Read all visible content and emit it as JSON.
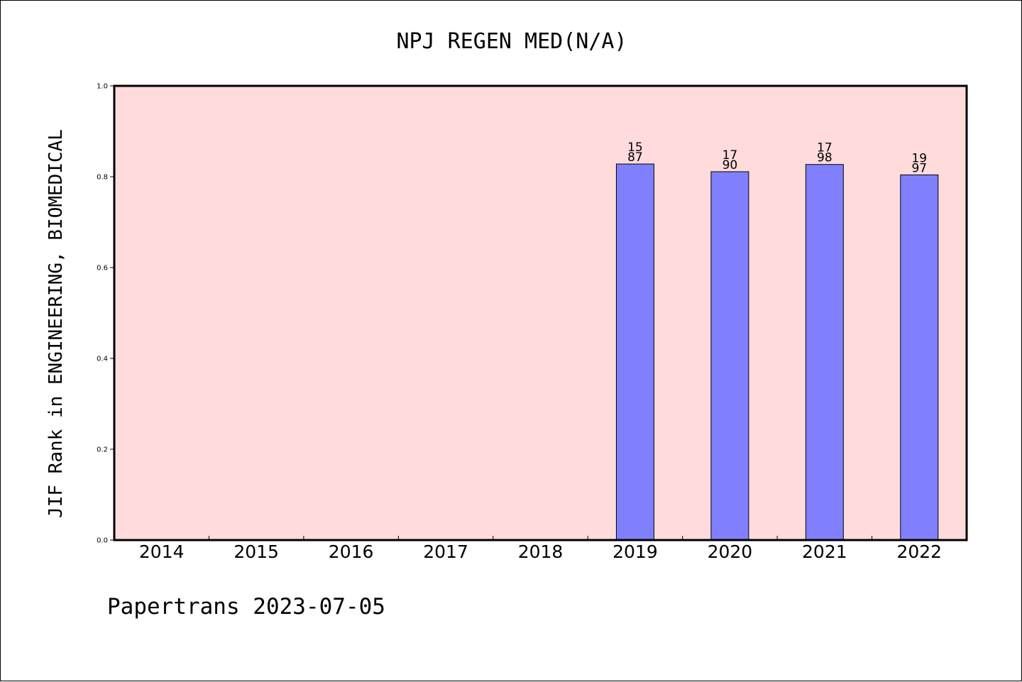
{
  "chart_data": {
    "type": "bar",
    "title": "NPJ REGEN MED(N/A)",
    "xlabel": "",
    "ylabel": "JIF Rank in ENGINEERING, BIOMEDICAL",
    "categories": [
      "2014",
      "2015",
      "2016",
      "2017",
      "2018",
      "2019",
      "2020",
      "2021",
      "2022"
    ],
    "values": [
      null,
      null,
      null,
      null,
      null,
      0.828,
      0.811,
      0.827,
      0.804
    ],
    "rank_labels": [
      null,
      null,
      null,
      null,
      null,
      {
        "rank": "15",
        "total": "87"
      },
      {
        "rank": "17",
        "total": "90"
      },
      {
        "rank": "17",
        "total": "98"
      },
      {
        "rank": "19",
        "total": "97"
      }
    ],
    "ylim": [
      0,
      1
    ],
    "yticks": [
      "0.0",
      "0.2",
      "0.4",
      "0.6",
      "0.8",
      "1.0"
    ],
    "grid": false,
    "colors": {
      "plot_background": "#ffdcdb",
      "bar_fill": "#8080ff",
      "bar_stroke": "#000000"
    }
  },
  "footer": "Papertrans 2023-07-05"
}
